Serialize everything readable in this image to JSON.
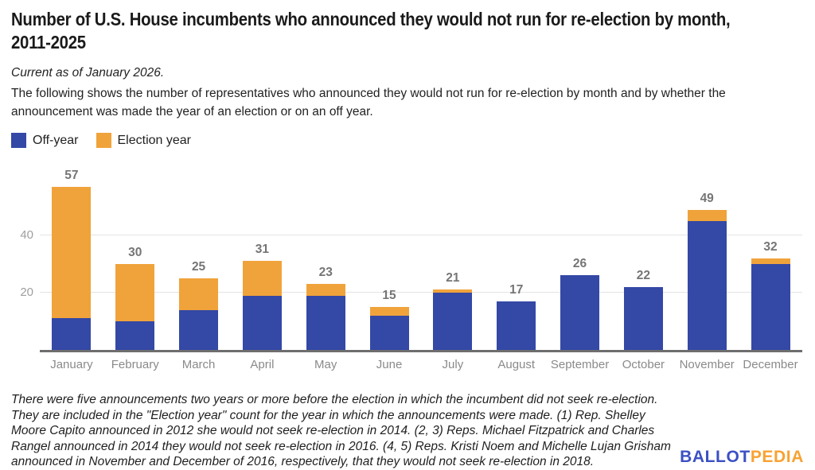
{
  "header": {
    "title": "Number of U.S. House incumbents who announced they would not run for re-election by month, 2011-2025",
    "title_lines": [
      "Number of U.S. House incumbents who announced they would not run for re-election by month,",
      "2011-2025"
    ],
    "subtitle": "Current as of January 2026.",
    "description": "The following shows the number of representatives who announced they would not run for re-election by month and by whether the announcement was made the year of an election or on an off year."
  },
  "legend": {
    "items": [
      {
        "label": "Off-year",
        "color": "#3448A5"
      },
      {
        "label": "Election year",
        "color": "#F0A33B"
      }
    ]
  },
  "chart_data": {
    "type": "bar",
    "stacked": true,
    "title": "Number of U.S. House incumbents who announced they would not run for re-election by month, 2011-2025",
    "categories": [
      "January",
      "February",
      "March",
      "April",
      "May",
      "June",
      "July",
      "August",
      "September",
      "October",
      "November",
      "December"
    ],
    "series": [
      {
        "name": "Off-year",
        "color": "#3448A5",
        "values": [
          11,
          10,
          14,
          19,
          19,
          12,
          20,
          17,
          26,
          22,
          45,
          30
        ]
      },
      {
        "name": "Election year",
        "color": "#F0A33B",
        "values": [
          46,
          20,
          11,
          12,
          4,
          3,
          1,
          0,
          0,
          0,
          4,
          2
        ]
      }
    ],
    "totals": [
      57,
      30,
      25,
      31,
      23,
      15,
      21,
      17,
      26,
      22,
      49,
      32
    ],
    "xlabel": "",
    "ylabel": "",
    "y_ticks": [
      20,
      40
    ],
    "ylim": [
      0,
      62
    ],
    "grid": true,
    "legend_position": "top-left",
    "colors": {
      "gridline": "#e4e4e4",
      "baseline": "#6e6e6e",
      "value_label": "#757575",
      "tick_label": "#9e9e9e",
      "month_label": "#8a8a8a"
    }
  },
  "footnote": "There were five announcements two years or more before the election in which the incumbent did not seek re-election. They are included in the \"Election year\" count for the year in which the announcements were made. (1) Rep. Shelley Moore Capito announced in 2012 she would not seek re-election in 2014. (2, 3) Reps. Michael Fitzpatrick and Charles Rangel announced in 2014 they would not seek re-election in 2016. (4, 5) Reps. Kristi Noem and Michelle Lujan Grisham announced in November and December of 2016, respectively, that they would not seek re-election in 2018.",
  "logo": {
    "part1": "BALLOT",
    "part2": "PEDIA",
    "color1": "#3C50C3",
    "color2": "#F7A233"
  }
}
